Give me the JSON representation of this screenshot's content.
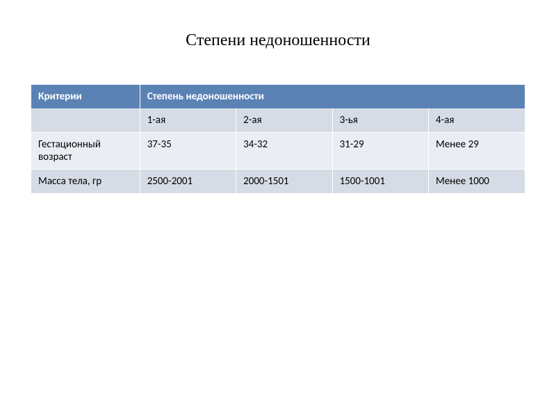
{
  "slide": {
    "title": "Степени недоношенности"
  },
  "table": {
    "type": "table",
    "header": {
      "criteria_label": "Критерии",
      "degree_label": "Степень недоношенности"
    },
    "subheader": {
      "blank": "",
      "d1": "1-ая",
      "d2": "2-ая",
      "d3": "3-ья",
      "d4": "4-ая"
    },
    "rows": {
      "gestational": {
        "label": "Гестационный возраст",
        "d1": "37-35",
        "d2": "34-32",
        "d3": "31-29",
        "d4": "Менее 29"
      },
      "mass": {
        "label": "Масса тела, гр",
        "d1": "2500-2001",
        "d2": "2000-1501",
        "d3": "1500-1001",
        "d4": "Менее 1000"
      }
    },
    "colors": {
      "header_bg": "#5a82b5",
      "header_fg": "#ffffff",
      "row_alt1_bg": "#d6dce5",
      "row_alt2_bg": "#eaedf3",
      "text_color": "#000000",
      "border_color": "#ffffff"
    },
    "font": {
      "title_family": "Times New Roman",
      "title_size_pt": 18,
      "body_family": "Calibri",
      "body_size_pt": 11
    }
  }
}
